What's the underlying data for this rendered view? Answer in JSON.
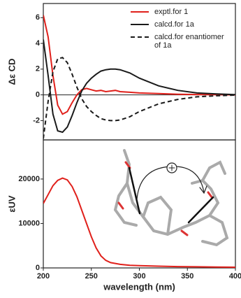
{
  "chart_data": [
    {
      "type": "line",
      "ylabel": "Δε CD",
      "x": [
        200,
        205,
        210,
        215,
        220,
        225,
        230,
        235,
        240,
        245,
        250,
        255,
        260,
        265,
        270,
        275,
        280,
        290,
        300,
        320,
        340,
        360,
        380,
        400
      ],
      "xlim": [
        200,
        400
      ],
      "ylim": [
        -3.5,
        7.1
      ],
      "yticks": [
        -2,
        0,
        2,
        4,
        6
      ],
      "legend": "upper right",
      "series": [
        {
          "name": "exptl.for 1",
          "color": "#e0201b",
          "dashed": false,
          "values": [
            6.2,
            4.5,
            1.5,
            -0.8,
            -1.5,
            -1.3,
            -0.6,
            0.0,
            0.4,
            0.5,
            0.4,
            0.3,
            0.35,
            0.25,
            0.3,
            0.35,
            0.25,
            0.2,
            0.15,
            0.1,
            0.05,
            0.03,
            0.02,
            0.0
          ]
        },
        {
          "name": "calcd.for 1a",
          "color": "#1a1a1a",
          "dashed": false,
          "values": [
            4.3,
            1.5,
            -1.5,
            -2.8,
            -2.9,
            -2.5,
            -1.6,
            -0.6,
            0.3,
            0.9,
            1.3,
            1.6,
            1.85,
            1.95,
            2.0,
            2.0,
            1.95,
            1.7,
            1.3,
            0.7,
            0.35,
            0.15,
            0.07,
            0.02
          ]
        },
        {
          "name": "calcd.for enantiomer of 1a",
          "color": "#1a1a1a",
          "dashed": true,
          "values": [
            -3.4,
            -0.5,
            1.8,
            2.8,
            2.9,
            2.5,
            1.6,
            0.6,
            -0.3,
            -0.9,
            -1.3,
            -1.6,
            -1.85,
            -1.95,
            -2.0,
            -2.0,
            -1.95,
            -1.7,
            -1.3,
            -0.7,
            -0.35,
            -0.15,
            -0.07,
            -0.02
          ]
        }
      ]
    },
    {
      "type": "line",
      "ylabel": "εUV",
      "xlabel": "wavelength (nm)",
      "x": [
        200,
        205,
        210,
        215,
        220,
        225,
        230,
        235,
        240,
        245,
        250,
        255,
        260,
        265,
        270,
        280,
        290,
        300,
        320,
        340,
        360,
        380,
        400
      ],
      "xlim": [
        200,
        400
      ],
      "xticks": [
        200,
        250,
        300,
        350,
        400
      ],
      "ylim": [
        0,
        28800
      ],
      "yticks": [
        0,
        10000,
        20000
      ],
      "series": [
        {
          "color": "#e0201b",
          "dashed": false,
          "values": [
            14500,
            16500,
            18500,
            19700,
            20200,
            19800,
            18300,
            16000,
            13000,
            10000,
            7000,
            4500,
            2700,
            1700,
            1200,
            800,
            600,
            500,
            400,
            300,
            250,
            200,
            150
          ]
        }
      ]
    }
  ]
}
